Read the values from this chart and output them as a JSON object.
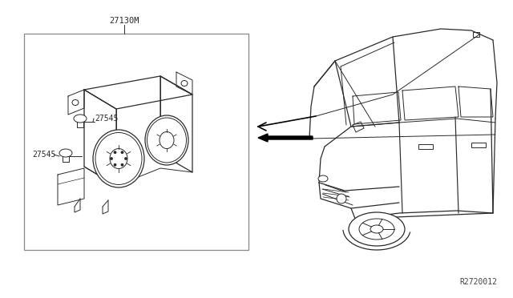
{
  "bg_color": "#ffffff",
  "line_color": "#2a2a2a",
  "box_color": "#888888",
  "text_color": "#2a2a2a",
  "part_number_main": "27130M",
  "part_number_sub1": "27545",
  "part_number_sub2": "27545",
  "ref_code": "R2720012",
  "fig_width": 6.4,
  "fig_height": 3.72,
  "dpi": 100,
  "lw_thin": 0.7,
  "lw_med": 0.9,
  "lw_thick": 1.2
}
